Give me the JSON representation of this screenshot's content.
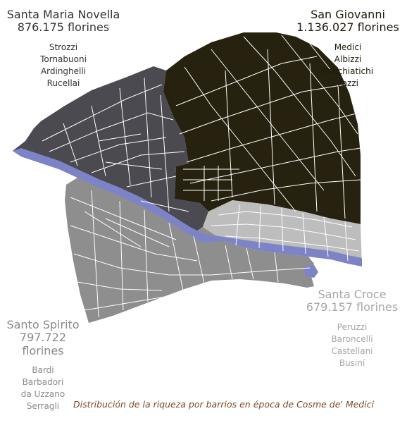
{
  "colors": {
    "santa_maria_novella": "#4a4a50",
    "san_giovanni": "#27220f",
    "santa_croce": "#bdbdbd",
    "santo_spirito": "#8e8e8e",
    "river": "#7c83c6",
    "caption": "#7a4a26",
    "streets": "#ffffff"
  },
  "quarters": {
    "santa_maria_novella": {
      "name": "Santa Maria Novella",
      "wealth": "876.175 florines",
      "families": [
        "Strozzi",
        "Tornabuoni",
        "Ardinghelli",
        "Rucellai"
      ]
    },
    "san_giovanni": {
      "name": "San Giovanni",
      "wealth": "1.136.027 florines",
      "families": [
        "Medici",
        "Albizzi",
        "Panchiatichi",
        "Pazzi"
      ]
    },
    "santa_croce": {
      "name": "Santa Croce",
      "wealth": "679.157 florines",
      "families": [
        "Peruzzi",
        "Baroncelli",
        "Castellani",
        "Businí"
      ]
    },
    "santo_spirito": {
      "name": "Santo Spirito",
      "wealth": "797.722 florines",
      "families": [
        "Bardi",
        "Barbadori",
        "da Uzzano",
        "Serragli"
      ]
    }
  },
  "caption": "Distribución de la riqueza por barrios en época de Cosme de' Medici"
}
